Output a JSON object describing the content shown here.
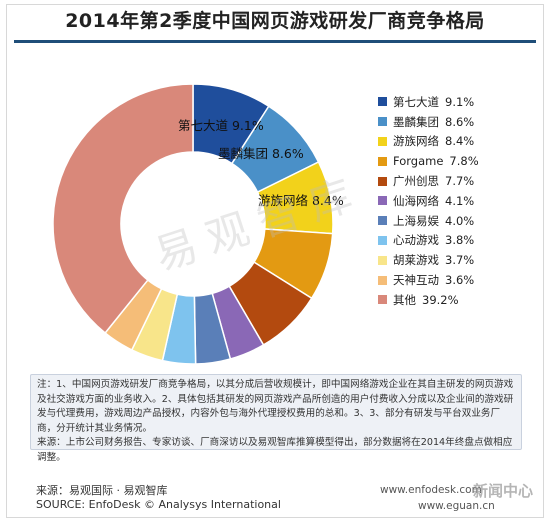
{
  "title": "2014年第2季度中国网页游戏研发厂商竞争格局",
  "watermark": "易观智库",
  "chart_data": {
    "type": "pie",
    "title": "2014年第2季度中国网页游戏研发厂商竞争格局",
    "donut": true,
    "legend_position": "right",
    "slices": [
      {
        "name": "第七大道",
        "value": 9.1,
        "label": "9.1%",
        "color": "#1f4e9c"
      },
      {
        "name": "墨麟集团",
        "value": 8.6,
        "label": "8.6%",
        "color": "#4a90c8"
      },
      {
        "name": "游族网络",
        "value": 8.4,
        "label": "8.4%",
        "color": "#f2d21b"
      },
      {
        "name": "Forgame",
        "value": 7.8,
        "label": "7.8%",
        "color": "#e39a12"
      },
      {
        "name": "广州创思",
        "value": 7.7,
        "label": "7.7%",
        "color": "#b34a0f"
      },
      {
        "name": "仙海网络",
        "value": 4.1,
        "label": "4.1%",
        "color": "#8a68b6"
      },
      {
        "name": "上海易娱",
        "value": 4.0,
        "label": "4.0%",
        "color": "#5a7fb8"
      },
      {
        "name": "心动游戏",
        "value": 3.8,
        "label": "3.8%",
        "color": "#7ec3ee"
      },
      {
        "name": "胡莱游戏",
        "value": 3.7,
        "label": "3.7%",
        "color": "#f8e58a"
      },
      {
        "name": "天神互动",
        "value": 3.6,
        "label": "3.6%",
        "color": "#f5bd78"
      },
      {
        "name": "其他",
        "value": 39.2,
        "label": "39.2%",
        "color": "#d9887a"
      }
    ],
    "slice_labels": [
      {
        "name": "第七大道",
        "value_text": "9.1%"
      },
      {
        "name": "墨麟集团",
        "value_text": "8.6%"
      },
      {
        "name": "游族网络",
        "value_text": "8.4%"
      }
    ]
  },
  "notes": {
    "line1": "注：1、中国网页游戏研发厂商竞争格局，以其分成后营收规模计，即中国网络游戏企业在其自主研发的网页游戏及社交游戏方面的业务收入。2、具体包括其研发的网页游戏产品所创造的用户付费收入分成以及企业间的游戏研发与代理费用，游戏周边产品授权，内容外包与海外代理授权费用的总和。3、3、部分有研发与平台双业务厂商，分开统计其业务情况。",
    "line2": "来源：上市公司财务报告、专家访谈、厂商深访以及易观智库推算模型得出，部分数据将在2014年终盘点做相应调整。"
  },
  "footer": {
    "source_cn": "来源：易观国际 · 易观智库",
    "source_en": "SOURCE: EnfoDesk © Analysys International",
    "site1": "www.enfodesk.com",
    "site2": "www.eguan.cn",
    "badge": "新闻中心"
  }
}
